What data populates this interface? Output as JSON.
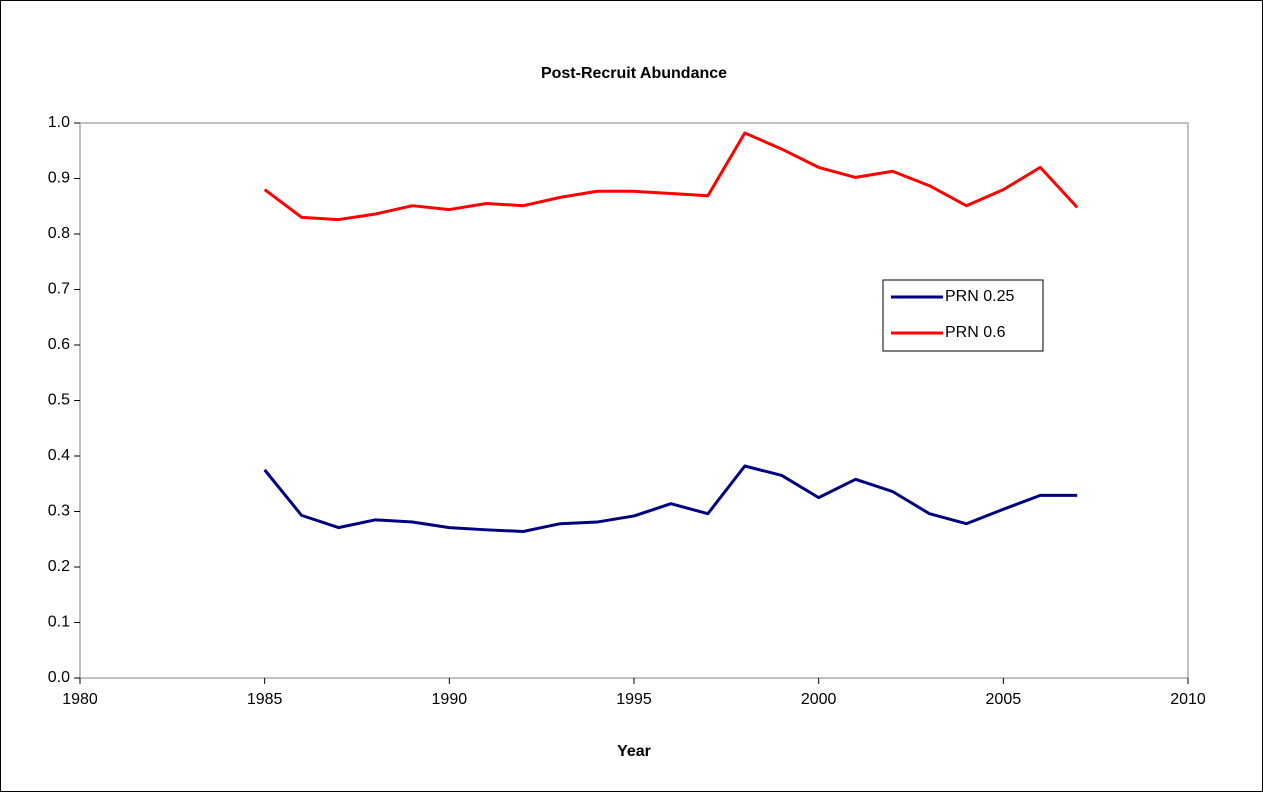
{
  "chart_data": {
    "type": "line",
    "title": "Post-Recruit Abundance",
    "x_label": "Year",
    "x": [
      1985,
      1986,
      1987,
      1988,
      1989,
      1990,
      1991,
      1992,
      1993,
      1994,
      1995,
      1996,
      1997,
      1998,
      1999,
      2000,
      2001,
      2002,
      2003,
      2004,
      2005,
      2006,
      2007
    ],
    "series": [
      {
        "name": "PRN 0.25",
        "color": "#000080",
        "values": [
          0.375,
          0.293,
          0.271,
          0.285,
          0.281,
          0.271,
          0.267,
          0.264,
          0.278,
          0.281,
          0.292,
          0.314,
          0.296,
          0.382,
          0.365,
          0.325,
          0.358,
          0.336,
          0.296,
          0.278,
          0.304,
          0.329,
          0.329
        ]
      },
      {
        "name": "PRN 0.6",
        "color": "#ff0000",
        "values": [
          0.88,
          0.83,
          0.826,
          0.836,
          0.851,
          0.844,
          0.855,
          0.851,
          0.866,
          0.877,
          0.877,
          0.873,
          0.869,
          0.982,
          0.953,
          0.92,
          0.902,
          0.913,
          0.887,
          0.851,
          0.88,
          0.92,
          0.848
        ]
      }
    ],
    "xlim": [
      1980,
      2010
    ],
    "xticks": [
      1980,
      1985,
      1990,
      1995,
      2000,
      2005,
      2010
    ],
    "ylim": [
      0,
      1
    ],
    "yticks": [
      {
        "value": 0,
        "label": "0.0"
      },
      0.1,
      0.2,
      0.3,
      0.4,
      0.5,
      0.6,
      0.7,
      0.8,
      0.9,
      {
        "value": 1,
        "label": "1.0"
      }
    ],
    "legend": "right"
  }
}
